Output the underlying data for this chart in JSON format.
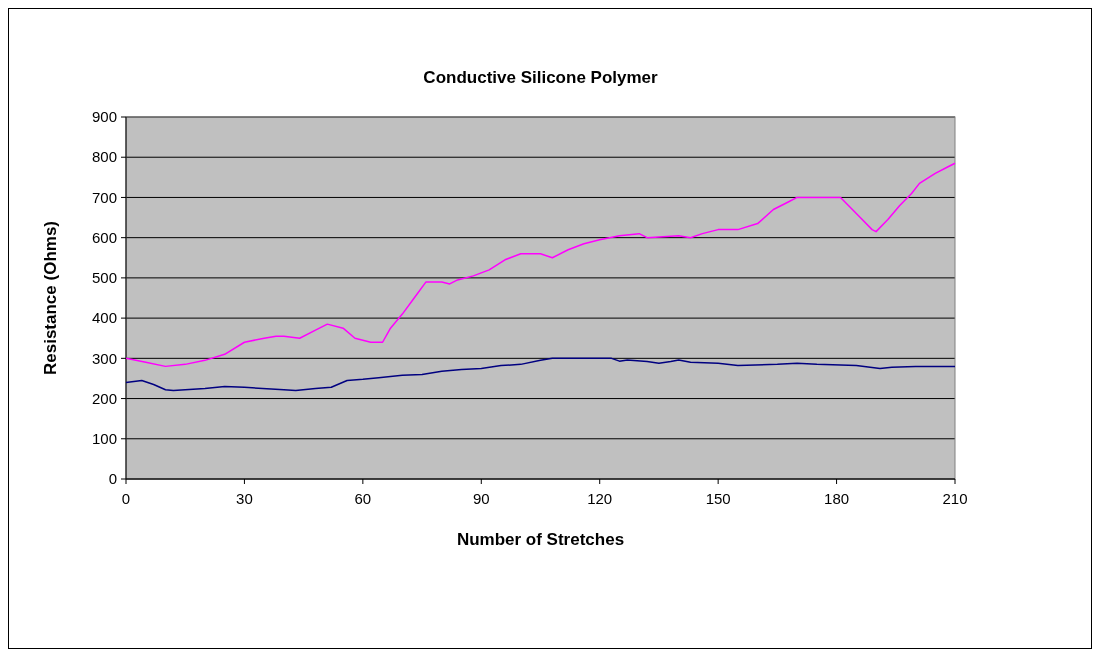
{
  "chart_data": {
    "type": "line",
    "title": "Conductive Silicone Polymer",
    "xlabel": "Number of Stretches",
    "ylabel": "Resistance (Ohms)",
    "xlim": [
      0,
      210
    ],
    "xticks": [
      0,
      30,
      60,
      90,
      120,
      150,
      180,
      210
    ],
    "ylim": [
      0,
      900
    ],
    "yticks": [
      0,
      100,
      200,
      300,
      400,
      500,
      600,
      700,
      800,
      900
    ],
    "grid": "y",
    "series": [
      {
        "color": "#ff00ff",
        "x": [
          0,
          5,
          10,
          15,
          20,
          25,
          30,
          35,
          38,
          40,
          44,
          48,
          51,
          55,
          58,
          62,
          65,
          67,
          70,
          73,
          76,
          80,
          82,
          84,
          88,
          92,
          96,
          100,
          105,
          108,
          112,
          116,
          120,
          125,
          130,
          132,
          140,
          143,
          146,
          150,
          155,
          160,
          164,
          168,
          170,
          174,
          178,
          181,
          183,
          186,
          189,
          190,
          193,
          196,
          199,
          201,
          205,
          208,
          210
        ],
        "values": [
          300,
          290,
          280,
          285,
          295,
          310,
          340,
          350,
          355,
          355,
          350,
          370,
          385,
          375,
          350,
          340,
          340,
          375,
          410,
          450,
          490,
          490,
          485,
          495,
          505,
          520,
          545,
          560,
          560,
          550,
          570,
          585,
          595,
          605,
          610,
          600,
          605,
          600,
          610,
          620,
          620,
          635,
          670,
          690,
          700,
          700,
          700,
          700,
          680,
          650,
          620,
          615,
          645,
          680,
          710,
          735,
          760,
          775,
          785
        ]
      },
      {
        "color": "#000080",
        "x": [
          0,
          4,
          7,
          10,
          12,
          20,
          25,
          30,
          40,
          43,
          48,
          52,
          56,
          60,
          64,
          70,
          75,
          80,
          85,
          90,
          95,
          100,
          105,
          108,
          123,
          125,
          127,
          132,
          135,
          138,
          140,
          143,
          150,
          155,
          165,
          170,
          175,
          185,
          191,
          194,
          200,
          210
        ],
        "values": [
          240,
          245,
          235,
          222,
          220,
          225,
          230,
          228,
          222,
          220,
          225,
          228,
          245,
          248,
          252,
          258,
          260,
          268,
          272,
          275,
          282,
          285,
          295,
          300,
          300,
          293,
          296,
          292,
          288,
          292,
          296,
          290,
          288,
          282,
          285,
          288,
          285,
          282,
          275,
          278,
          280,
          280
        ]
      }
    ]
  }
}
